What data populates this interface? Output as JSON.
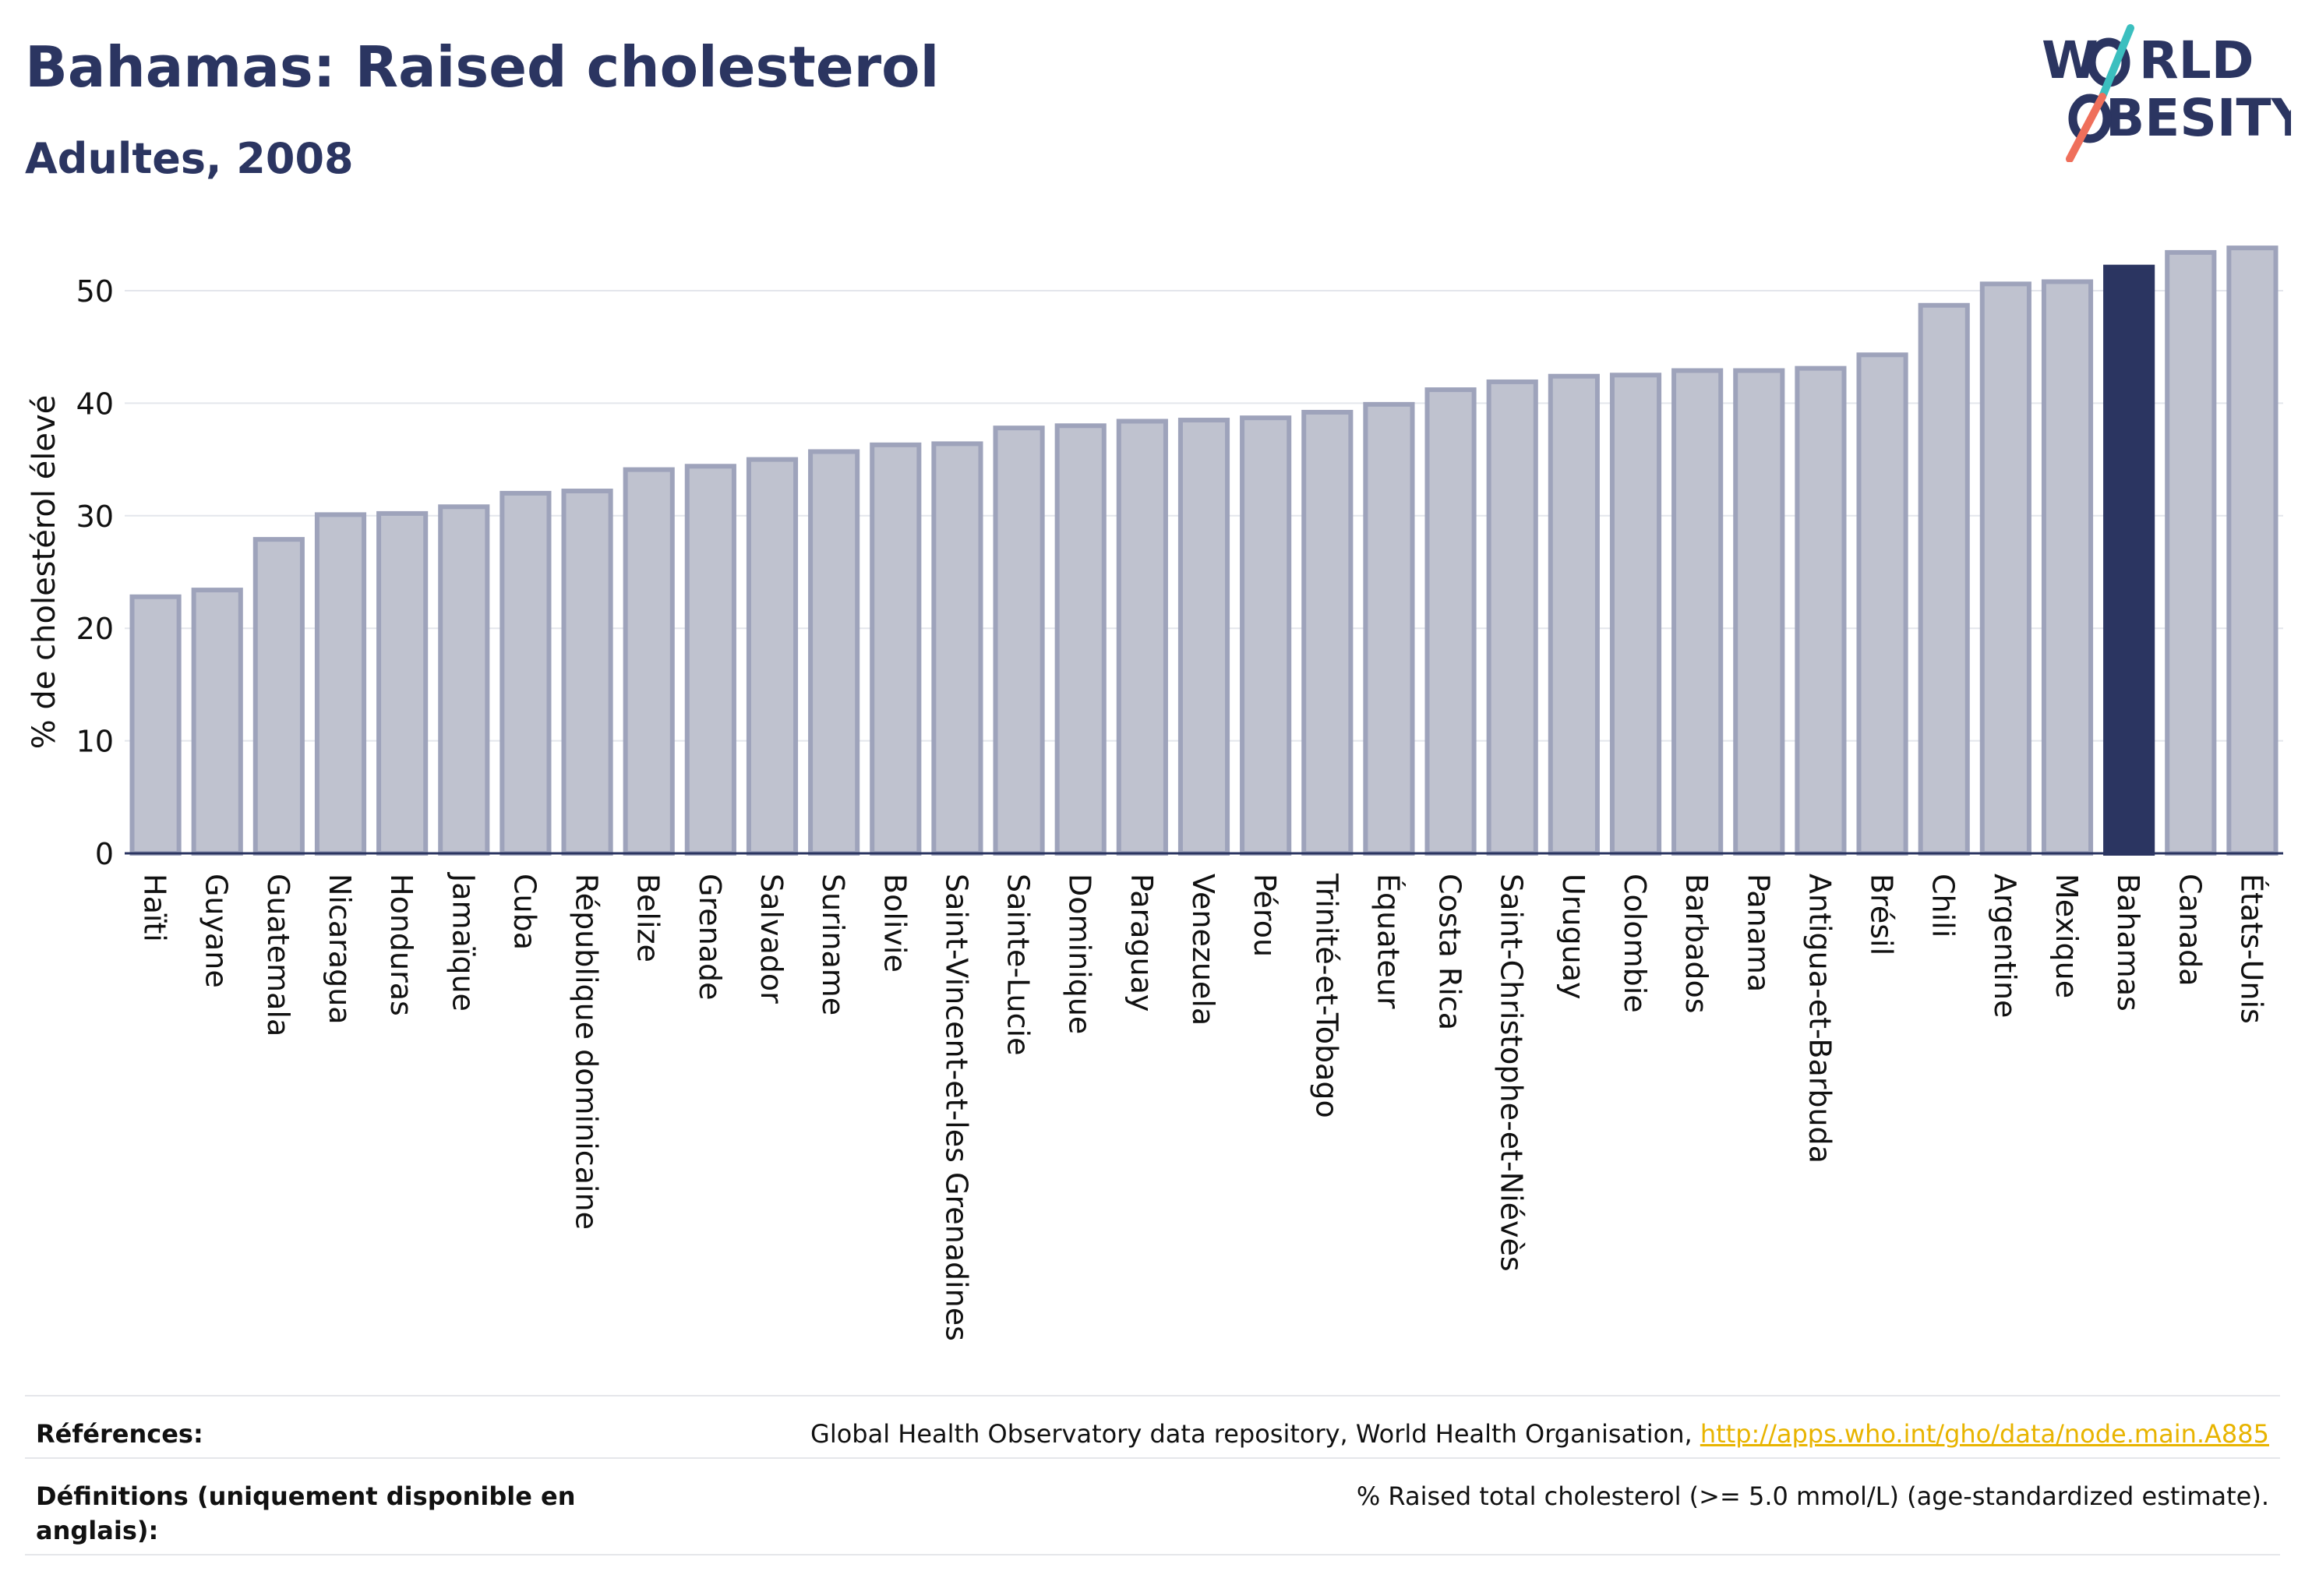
{
  "chart_data": {
    "type": "bar",
    "title": "Bahamas: Raised cholesterol",
    "subtitle": "Adultes, 2008",
    "ylabel": "% de cholestérol élevé",
    "xlabel": "",
    "ylim": [
      0,
      55
    ],
    "yticks": [
      0,
      10,
      20,
      30,
      40,
      50
    ],
    "grid": true,
    "highlight": "Bahamas",
    "categories": [
      "Haïti",
      "Guyane",
      "Guatemala",
      "Nicaragua",
      "Honduras",
      "Jamaïque",
      "Cuba",
      "République dominicaine",
      "Belize",
      "Grenade",
      "Salvador",
      "Suriname",
      "Bolivie",
      "Saint-Vincent-et-les Grenadines",
      "Sainte-Lucie",
      "Dominique",
      "Paraguay",
      "Venezuela",
      "Pérou",
      "Trinité-et-Tobago",
      "Équateur",
      "Costa Rica",
      "Saint-Christophe-et-Niévès",
      "Uruguay",
      "Colombie",
      "Barbados",
      "Panama",
      "Antigua-et-Barbuda",
      "Brésil",
      "Chili",
      "Argentine",
      "Mexique",
      "Bahamas",
      "Canada",
      "États-Unis"
    ],
    "values": [
      22.8,
      23.4,
      27.9,
      30.1,
      30.2,
      30.8,
      32.0,
      32.2,
      34.1,
      34.4,
      35.0,
      35.7,
      36.3,
      36.4,
      37.8,
      38.0,
      38.4,
      38.5,
      38.7,
      39.2,
      39.9,
      41.2,
      41.9,
      42.4,
      42.5,
      42.9,
      42.9,
      43.1,
      44.3,
      48.7,
      50.6,
      50.8,
      52.1,
      53.4,
      53.8
    ],
    "colors": {
      "bar": "#bfc2cf",
      "bar_border": "#9ea3bb",
      "highlight": "#2b3561"
    }
  },
  "logo": {
    "line1": "WORLD",
    "line2": "OBESITY"
  },
  "footer": {
    "references_label": "Références:",
    "references_text": "Global Health Observatory data repository, World Health Organisation, ",
    "references_link": "http://apps.who.int/gho/data/node.main.A885",
    "definitions_label": "Définitions (uniquement disponible en anglais):",
    "definitions_text": "% Raised total cholesterol (>= 5.0 mmol/L) (age-standardized estimate)."
  }
}
